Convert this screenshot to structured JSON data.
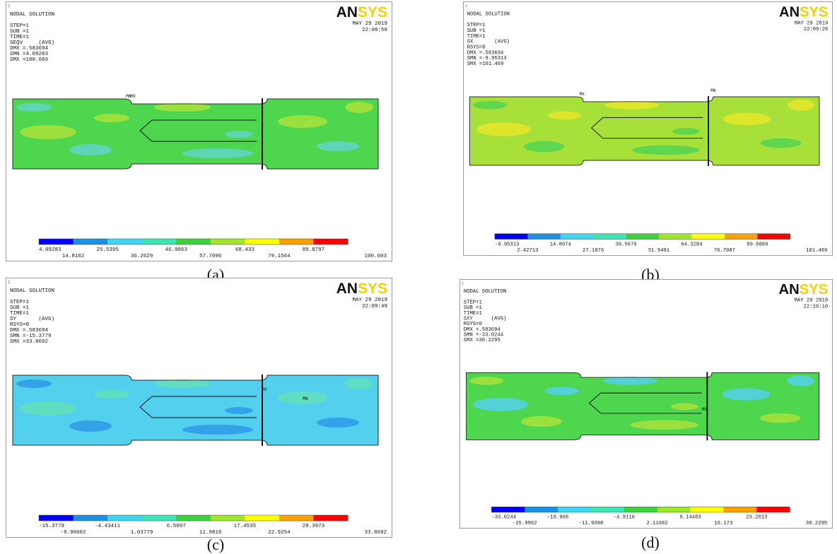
{
  "panels": [
    {
      "corner_number": "1",
      "header_lines": [
        "NODAL SOLUTION",
        "STEP=1",
        "SUB =1",
        "TIME=1",
        "SEQV     (AVG)",
        "DMX =.583694",
        "SMN =4.09283",
        "SMX =100.603"
      ],
      "logo": [
        "AN",
        "SYS"
      ],
      "date": "MAY 29 2019",
      "time": "22:08:50",
      "markers": [
        "MN",
        "MX"
      ],
      "legend_values": [
        4.09283,
        14.8162,
        25.5395,
        36.2629,
        46.9863,
        57.7096,
        68.433,
        79.1564,
        89.8797,
        100.603
      ],
      "caption": "(a)"
    },
    {
      "corner_number": "1",
      "header_lines": [
        "NODAL SOLUTION",
        "STEP=1",
        "SUB =1",
        "TIME=1",
        "SX       (AVG)",
        "RSYS=0",
        "DMX =.583694",
        "SMN =-9.95313",
        "SMX =101.469"
      ],
      "logo": [
        "AN",
        "SYS"
      ],
      "date": "MAY 29 2019",
      "time": "22:09:26",
      "markers": [
        "MX",
        "MN"
      ],
      "legend_values": [
        -9.95313,
        2.42713,
        14.8074,
        27.1876,
        39.5679,
        51.9481,
        64.3284,
        76.7087,
        89.0889,
        101.469
      ],
      "caption": "(b)"
    },
    {
      "corner_number": "1",
      "header_lines": [
        "NODAL SOLUTION",
        "STEP=1",
        "SUB =1",
        "TIME=1",
        "SY       (AVG)",
        "RSYS=0",
        "DMX =.583694",
        "SMN =-15.3779",
        "SMX =33.8692"
      ],
      "logo": [
        "AN",
        "SYS"
      ],
      "date": "MAY 29 2019",
      "time": "22:09:49",
      "markers": [
        "MX",
        "MN"
      ],
      "legend_values": [
        -15.3779,
        -9.90602,
        -4.43411,
        1.03779,
        6.5097,
        11.9816,
        17.4535,
        22.9254,
        28.3973,
        33.8692
      ],
      "caption": "(c)"
    },
    {
      "corner_number": "1",
      "header_lines": [
        "NODAL SOLUTION",
        "STEP=1",
        "SUB =1",
        "TIME=1",
        "SXY      (AVG)",
        "RSYS=0",
        "DMX =.583694",
        "SMN =-33.0244",
        "SMX =30.2295"
      ],
      "logo": [
        "AN",
        "SYS"
      ],
      "date": "MAY 29 2019",
      "time": "22:10:10",
      "markers": [
        "MN"
      ],
      "legend_values": [
        -33.0244,
        -25.9962,
        -18.968,
        -11.9398,
        -4.9116,
        2.11662,
        9.14483,
        16.173,
        23.2013,
        30.2295
      ],
      "caption": "(d)"
    }
  ]
}
